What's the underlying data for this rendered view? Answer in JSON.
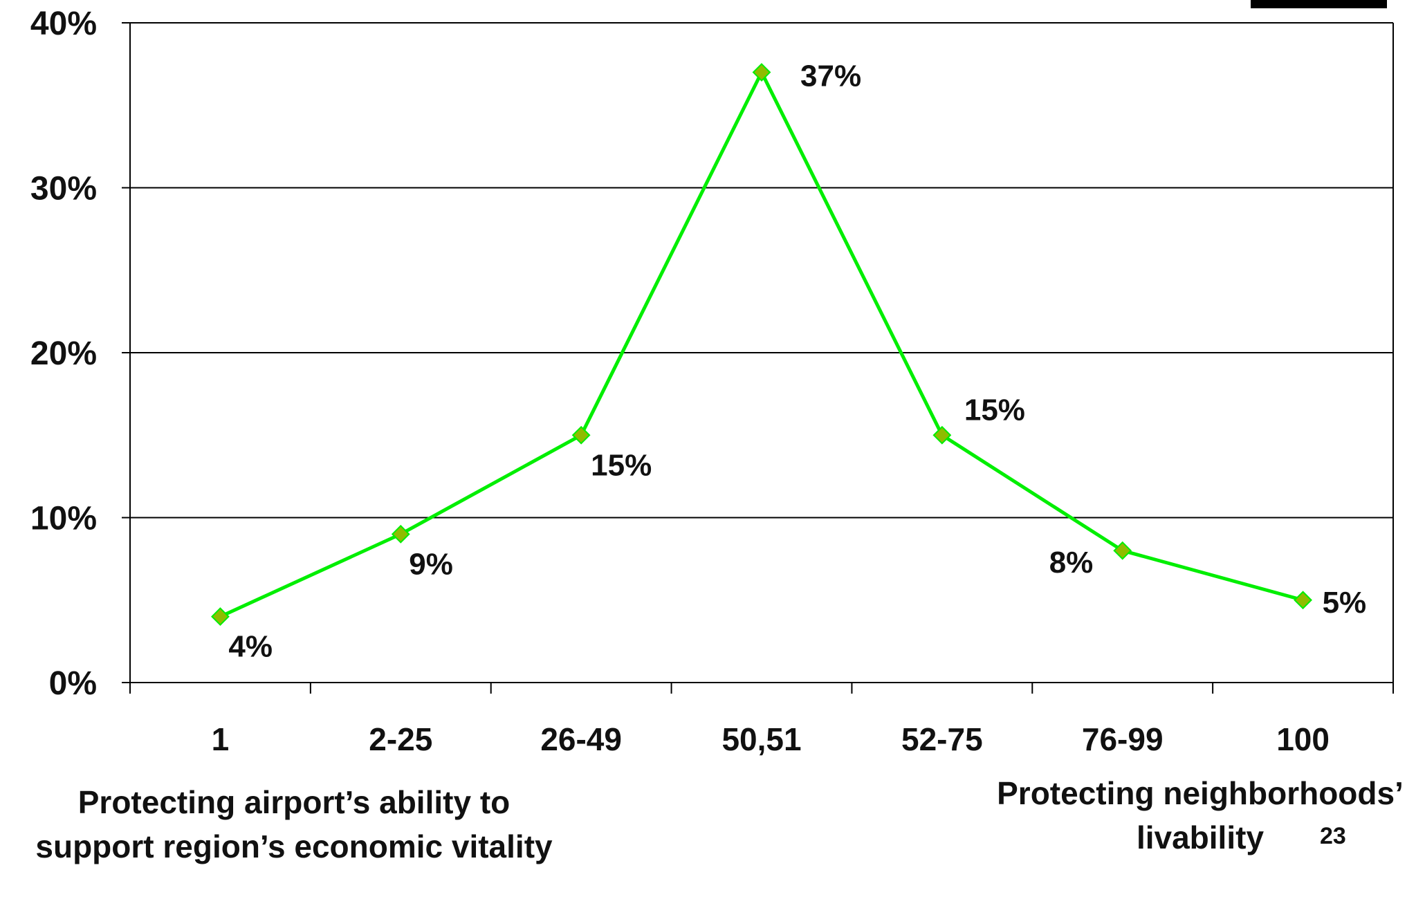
{
  "chart_data": {
    "type": "line",
    "categories": [
      "1",
      "2-25",
      "26-49",
      "50,51",
      "52-75",
      "76-99",
      "100"
    ],
    "series": [
      {
        "values": [
          4,
          9,
          15,
          37,
          15,
          8,
          5
        ],
        "color": "#00ee00",
        "marker_color": "#8fbc00"
      }
    ],
    "data_labels": [
      "4%",
      "9%",
      "15%",
      "37%",
      "15%",
      "8%",
      "5%"
    ],
    "ylim": [
      0,
      40
    ],
    "yticks": [
      0,
      10,
      20,
      30,
      40
    ],
    "ytick_labels": [
      "0%",
      "10%",
      "20%",
      "30%",
      "40%"
    ],
    "grid": true,
    "title": "",
    "xlabel": "",
    "ylabel": ""
  },
  "captions": {
    "left": "Protecting airport’s ability to support region’s economic vitality",
    "right": "Protecting neighborhoods’ livability"
  },
  "slide_number": "23"
}
